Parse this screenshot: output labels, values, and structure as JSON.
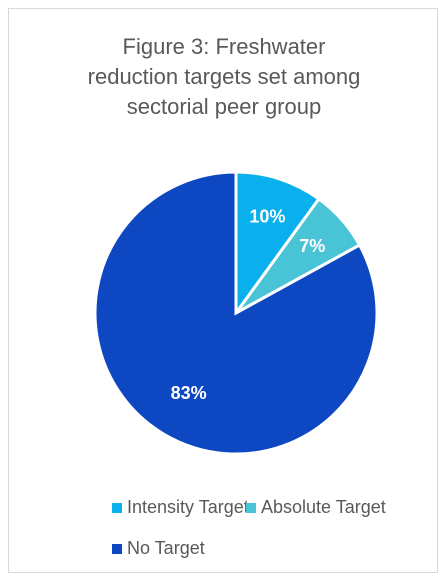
{
  "chart_data": {
    "type": "pie",
    "title_lines": [
      "Figure 3: Freshwater",
      "reduction targets set among",
      "sectorial peer group"
    ],
    "categories": [
      "Intensity Target",
      "Absolute Target",
      "No Target"
    ],
    "values": [
      10,
      7,
      83
    ],
    "labels": [
      "10%",
      "7%",
      "83%"
    ],
    "colors": [
      "#0ab0ee",
      "#49c3d6",
      "#0d47c1"
    ],
    "label_color": "#ffffff",
    "start_angle_deg": 0,
    "direction": "clockwise",
    "legend_position": "bottom"
  }
}
